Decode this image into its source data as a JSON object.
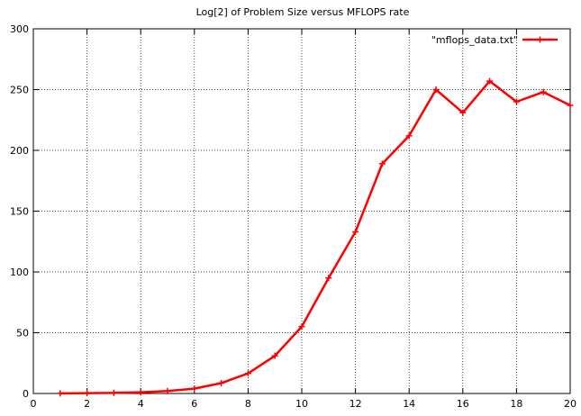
{
  "chart_data": {
    "type": "line",
    "title": "Log[2] of Problem Size versus MFLOPS rate",
    "xlabel": "",
    "ylabel": "",
    "xlim": [
      0,
      20
    ],
    "ylim": [
      0,
      300
    ],
    "x_ticks": [
      0,
      2,
      4,
      6,
      8,
      10,
      12,
      14,
      16,
      18,
      20
    ],
    "y_ticks": [
      0,
      50,
      100,
      150,
      200,
      250,
      300
    ],
    "grid": true,
    "legend_position": "top-right",
    "series": [
      {
        "name": "\"mflops_data.txt\"",
        "color": "#ff0000",
        "marker": "plus",
        "x": [
          1,
          2,
          3,
          4,
          5,
          6,
          7,
          8,
          9,
          10,
          11,
          12,
          13,
          14,
          15,
          16,
          17,
          18,
          19,
          20
        ],
        "y": [
          0.1,
          0.3,
          0.5,
          1.0,
          2.0,
          4.0,
          8.5,
          16.5,
          31,
          55,
          95,
          133,
          189,
          212,
          250,
          231,
          257,
          240,
          248,
          237
        ]
      }
    ]
  }
}
